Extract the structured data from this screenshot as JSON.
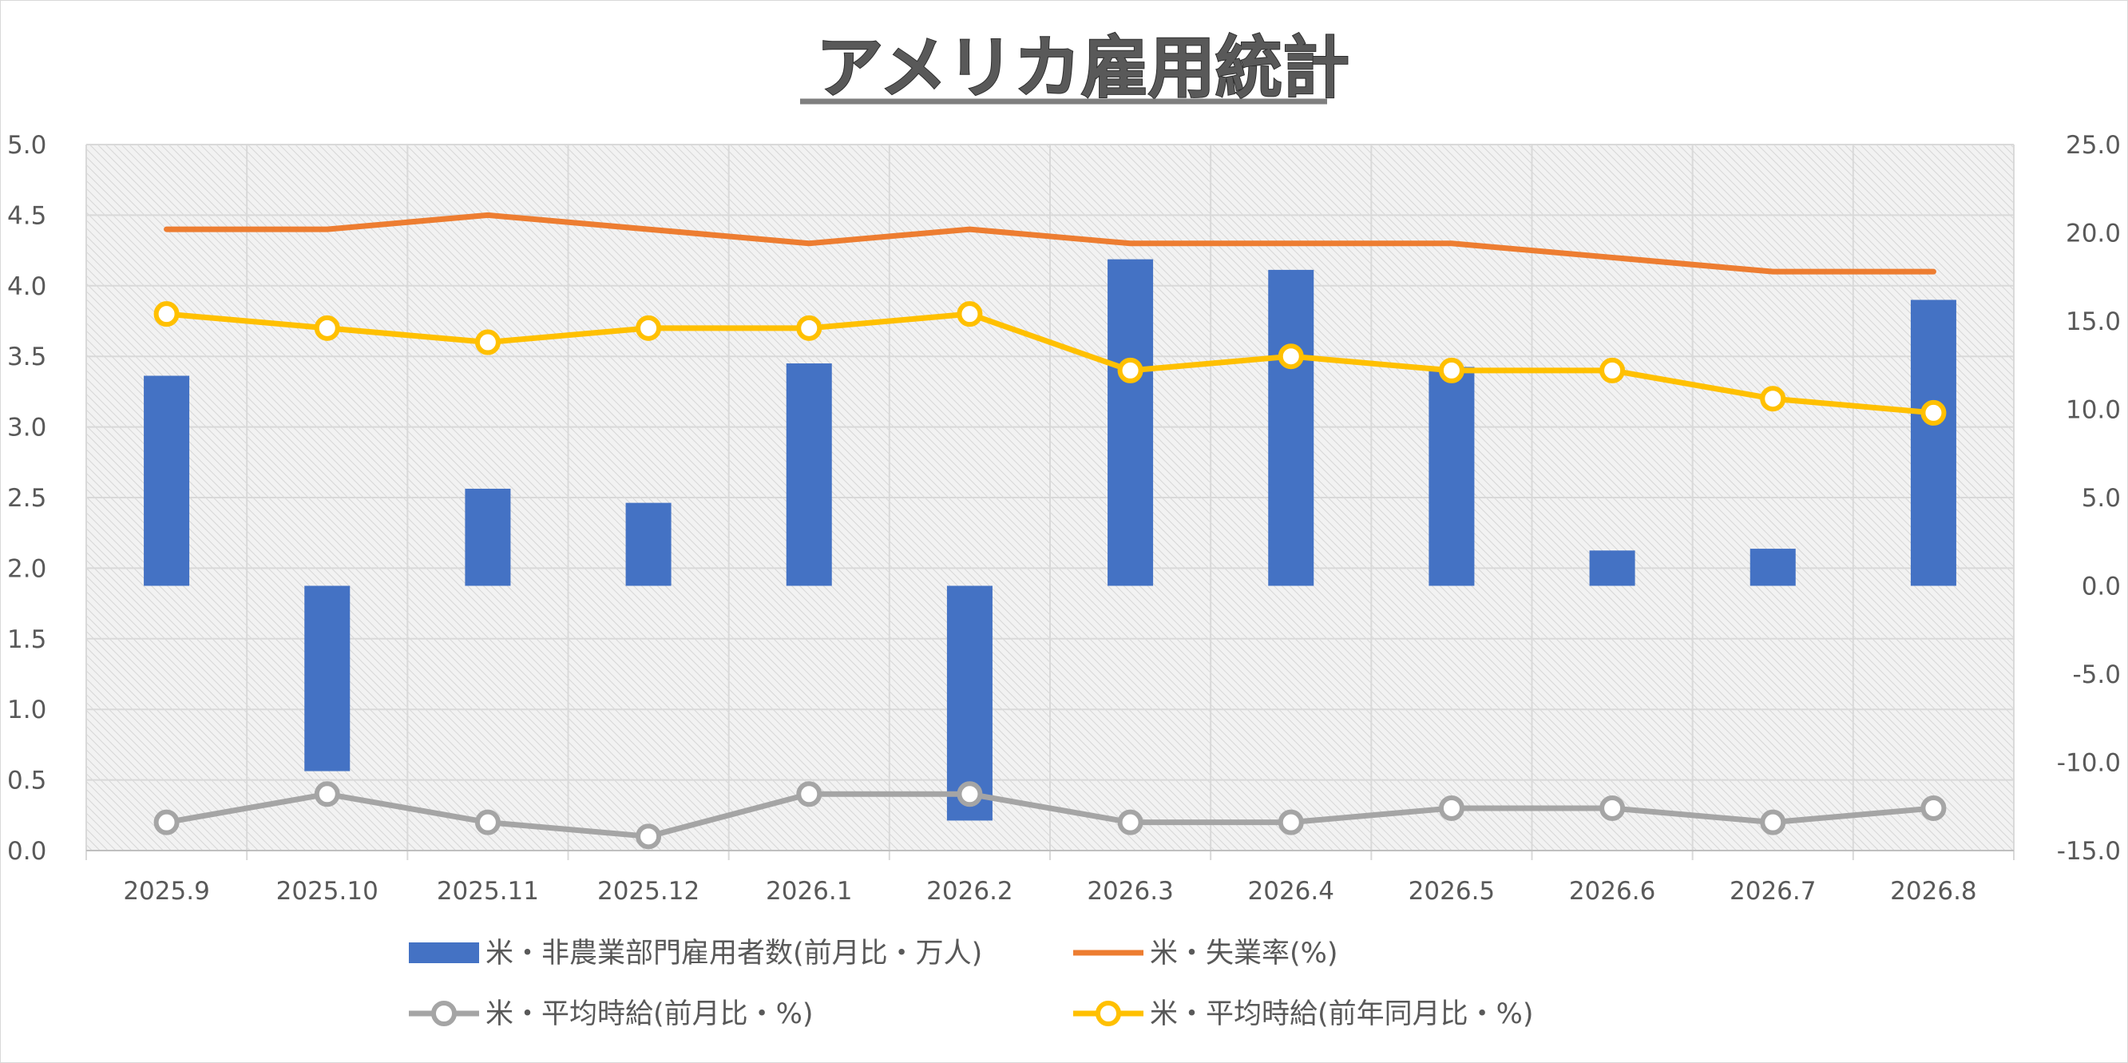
{
  "chart_data": {
    "type": "bar",
    "title": "アメリカ雇用統計",
    "categories": [
      "2025.9",
      "2025.10",
      "2025.11",
      "2025.12",
      "2026.1",
      "2026.2",
      "2026.3",
      "2026.4",
      "2026.5",
      "2026.6",
      "2026.7",
      "2026.8"
    ],
    "y_left": {
      "min": 0.0,
      "max": 5.0,
      "step": 0.5,
      "ticks": [
        "0.0",
        "0.5",
        "1.0",
        "1.5",
        "2.0",
        "2.5",
        "3.0",
        "3.5",
        "4.0",
        "4.5",
        "5.0"
      ]
    },
    "y_right": {
      "min": -15.0,
      "max": 25.0,
      "step": 5.0,
      "ticks": [
        "-15.0",
        "-10.0",
        "-5.0",
        "0.0",
        "5.0",
        "10.0",
        "15.0",
        "20.0",
        "25.0"
      ]
    },
    "grid": true,
    "legend_position": "bottom",
    "series": [
      {
        "name": "米・非農業部門雇用者数(前月比・万人)",
        "kind": "bar",
        "axis": "right",
        "color": "#4472C4",
        "values": [
          11.9,
          -10.5,
          5.5,
          4.7,
          12.6,
          -13.3,
          18.5,
          17.9,
          12.4,
          2.0,
          2.1,
          16.2
        ]
      },
      {
        "name": "米・失業率(%)",
        "kind": "line",
        "axis": "left",
        "color": "#ED7D31",
        "marker": false,
        "values": [
          4.4,
          4.4,
          4.5,
          4.4,
          4.3,
          4.4,
          4.3,
          4.3,
          4.3,
          4.2,
          4.1,
          4.1
        ]
      },
      {
        "name": "米・平均時給(前月比・%)",
        "kind": "line",
        "axis": "left",
        "color": "#A5A5A5",
        "marker": true,
        "values": [
          0.2,
          0.4,
          0.2,
          0.1,
          0.4,
          0.4,
          0.2,
          0.2,
          0.3,
          0.3,
          0.2,
          0.3
        ]
      },
      {
        "name": "米・平均時給(前年同月比・%)",
        "kind": "line",
        "axis": "left",
        "color": "#FFC000",
        "marker": true,
        "values": [
          3.8,
          3.7,
          3.6,
          3.7,
          3.7,
          3.8,
          3.4,
          3.5,
          3.4,
          3.4,
          3.2,
          3.1
        ]
      }
    ]
  }
}
